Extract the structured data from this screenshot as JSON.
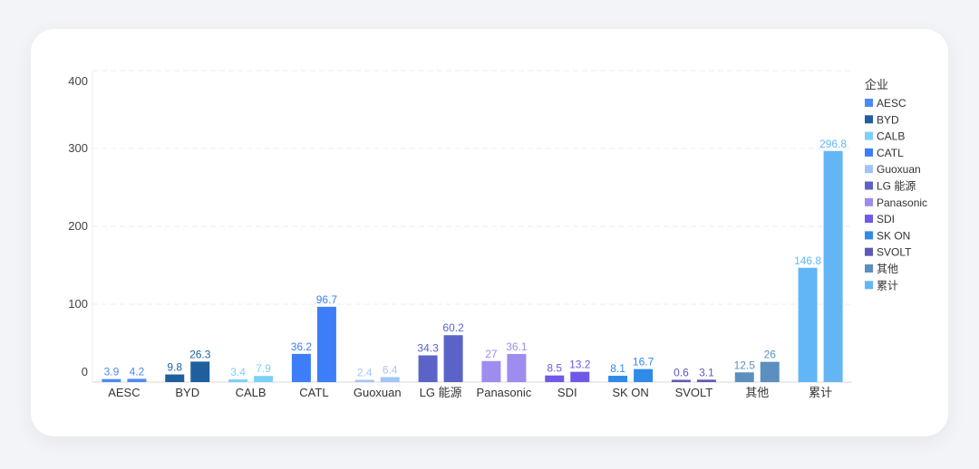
{
  "chart_data": {
    "type": "bar",
    "categories": [
      "AESC",
      "BYD",
      "CALB",
      "CATL",
      "Guoxuan",
      "LG 能源",
      "Panasonic",
      "SDI",
      "SK ON",
      "SVOLT",
      "其他",
      "累计"
    ],
    "series": [
      {
        "values": [
          3.9,
          9.8,
          3.4,
          36.2,
          2.4,
          34.3,
          27,
          8.5,
          8.1,
          0.6,
          12.5,
          146.8
        ]
      },
      {
        "values": [
          4.2,
          26.3,
          7.9,
          96.7,
          6.4,
          60.2,
          36.1,
          13.2,
          16.7,
          3.1,
          26,
          296.8
        ]
      }
    ],
    "colors": [
      "#4e8af4",
      "#1f5f9e",
      "#7dd0f5",
      "#3d7df7",
      "#a4c4f8",
      "#5b63c9",
      "#9f8cef",
      "#7058e8",
      "#2f8ae8",
      "#5f59b8",
      "#5b8fc0",
      "#63b6f5"
    ],
    "yticks": [
      0,
      100,
      200,
      300,
      400
    ],
    "ylim": [
      0,
      400
    ],
    "legend": {
      "title": "企业",
      "position": "right",
      "items": [
        "AESC",
        "BYD",
        "CALB",
        "CATL",
        "Guoxuan",
        "LG 能源",
        "Panasonic",
        "SDI",
        "SK ON",
        "SVOLT",
        "其他",
        "累计"
      ]
    },
    "grid": true
  }
}
